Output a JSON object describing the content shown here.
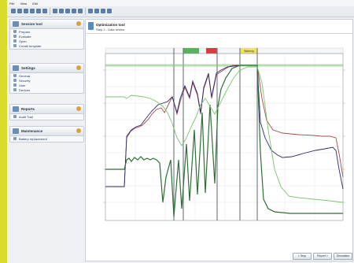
{
  "menu": [
    "File",
    "View",
    "Edit"
  ],
  "toolbar_icons": [
    "back-icon",
    "forward-icon",
    "hand-icon",
    "move-icon",
    "zoom-icon",
    "pan-icon",
    "zoom-in-icon",
    "zoom-out-icon",
    "refresh-icon",
    "print-icon",
    "settings-icon",
    "play-icon",
    "stop-icon",
    "grid-icon",
    "export-icon"
  ],
  "sidebar": {
    "session": {
      "title": "Session tool",
      "items": [
        "Prepare",
        "Evaluate",
        "Open",
        "Create template"
      ]
    },
    "settings": {
      "title": "Settings",
      "items": [
        "General",
        "Security",
        "User",
        "Devices"
      ]
    },
    "reports": {
      "title": "Reports",
      "items": [
        "Audit Trail"
      ]
    },
    "maintenance": {
      "title": "Maintenance",
      "items": [
        "Battery replacement"
      ]
    }
  },
  "main": {
    "title": "Optimization tool",
    "subtitle": "Step 2 - Data review",
    "phases": [
      "",
      "",
      "Warmup",
      "",
      ""
    ],
    "buttons": [
      "< Stop",
      "Report >",
      "Simulation"
    ]
  },
  "colors": {
    "accent": "#d7dd2a",
    "series_dark": "#2f6e36",
    "series_light": "#7ec36f",
    "series_red": "#a24d4d",
    "series_navy": "#2e2a72"
  }
}
